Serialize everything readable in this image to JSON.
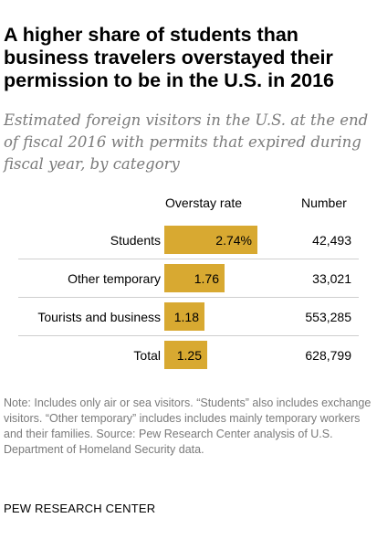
{
  "chart_data": {
    "type": "bar",
    "title": "A higher share of students than business travelers overstayed their permission to be in the U.S. in 2016",
    "subtitle": "Estimated foreign visitors in the U.S. at the end of fiscal 2016 with permits that expired during fiscal year, by category",
    "columns": {
      "rate": "Overstay rate",
      "number": "Number"
    },
    "categories": [
      "Students",
      "Other temporary",
      "Tourists and business",
      "Total"
    ],
    "values": [
      2.74,
      1.76,
      1.18,
      1.25
    ],
    "value_labels": [
      "2.74%",
      "1.76",
      "1.18",
      "1.25"
    ],
    "numbers": [
      "42,493",
      "33,021",
      "553,285",
      "628,799"
    ],
    "bar_color": "#d8a931",
    "xlim": [
      0,
      2.74
    ]
  },
  "note": "Note: Includes only air or sea visitors. “Students” also includes exchange visitors. “Other temporary” includes includes mainly temporary workers and their families. Source: Pew Research Center analysis of U.S. Department of Homeland Security data.",
  "source": "PEW RESEARCH CENTER"
}
